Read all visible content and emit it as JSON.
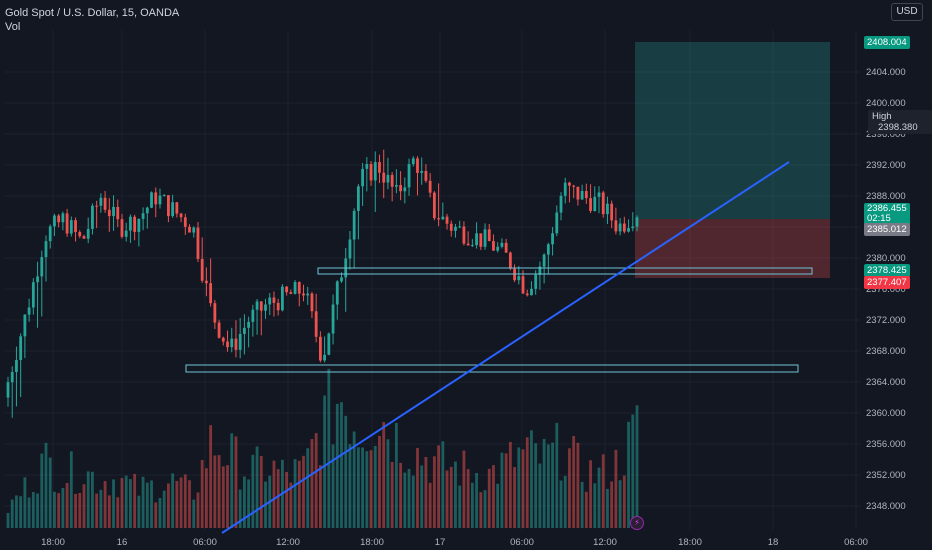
{
  "legend": {
    "symbol_line": "Gold Spot / U.S. Dollar, 15, OANDA",
    "volume_label": "Vol"
  },
  "currency_button": "USD",
  "y_axis": {
    "ticks": [
      "2348.000",
      "2352.000",
      "2356.000",
      "2360.000",
      "2364.000",
      "2368.000",
      "2372.000",
      "2376.000",
      "2380.000",
      "2384.000",
      "2388.000",
      "2392.000",
      "2396.000",
      "2400.000",
      "2404.000"
    ]
  },
  "x_axis": {
    "ticks": [
      "18:00",
      "16",
      "06:00",
      "12:00",
      "18:00",
      "17",
      "06:00",
      "12:00",
      "18:00",
      "18",
      "06:00"
    ]
  },
  "price_labels": {
    "target": "2408.004",
    "high_word": "High",
    "high_value": "2398.380",
    "last_price": "2386.455",
    "countdown": "02:15",
    "entry": "2385.012",
    "green_level": "2378.425",
    "stop": "2377.407"
  },
  "colors": {
    "background": "#131722",
    "up": "#26a69a",
    "down": "#ef5350",
    "trendline": "#2962ff",
    "zone_border": "#6ec6d6"
  },
  "chart_data": {
    "type": "candlestick",
    "timeframe": "15",
    "symbol": "Gold Spot / U.S. Dollar",
    "ylim": [
      2346.0,
      2411.0
    ],
    "candles_ohlc_sampled": [
      [
        2362,
        2366,
        2345,
        2364
      ],
      [
        2364,
        2375,
        2362,
        2373
      ],
      [
        2373,
        2385,
        2370,
        2383
      ],
      [
        2383,
        2387,
        2380,
        2385
      ],
      [
        2385,
        2386,
        2381,
        2382
      ],
      [
        2382,
        2390,
        2381,
        2388
      ],
      [
        2388,
        2389,
        2382,
        2384
      ],
      [
        2384,
        2386,
        2380,
        2385
      ],
      [
        2385,
        2390,
        2383,
        2388
      ],
      [
        2388,
        2389,
        2383,
        2386
      ],
      [
        2386,
        2387,
        2381,
        2384
      ],
      [
        2384,
        2385,
        2371,
        2373
      ],
      [
        2373,
        2374,
        2366,
        2368
      ],
      [
        2368,
        2374,
        2365,
        2372
      ],
      [
        2372,
        2376,
        2369,
        2374
      ],
      [
        2374,
        2377,
        2372,
        2375
      ],
      [
        2375,
        2378,
        2371,
        2376
      ],
      [
        2376,
        2377,
        2366,
        2367
      ],
      [
        2367,
        2380,
        2366,
        2378
      ],
      [
        2378,
        2392,
        2377,
        2390
      ],
      [
        2390,
        2397,
        2384,
        2392
      ],
      [
        2392,
        2395,
        2385,
        2388
      ],
      [
        2388,
        2394,
        2386,
        2393
      ],
      [
        2393,
        2395,
        2384,
        2386
      ],
      [
        2386,
        2387,
        2381,
        2384
      ],
      [
        2384,
        2386,
        2381,
        2383
      ],
      [
        2383,
        2385,
        2381,
        2382
      ],
      [
        2382,
        2383,
        2378,
        2380
      ],
      [
        2380,
        2381,
        2375,
        2376
      ],
      [
        2376,
        2381,
        2374,
        2380
      ],
      [
        2380,
        2391,
        2379,
        2389
      ],
      [
        2389,
        2393,
        2386,
        2388
      ],
      [
        2388,
        2390,
        2384,
        2387
      ],
      [
        2387,
        2388,
        2382,
        2384
      ],
      [
        2384,
        2387,
        2383,
        2386
      ]
    ],
    "volume_bars_sampled": [
      10,
      22,
      35,
      28,
      30,
      25,
      26,
      20,
      22,
      24,
      18,
      45,
      38,
      30,
      32,
      28,
      30,
      55,
      70,
      52,
      60,
      48,
      40,
      35,
      32,
      30,
      28,
      34,
      40,
      36,
      42,
      30,
      28,
      34,
      52
    ],
    "zones": [
      {
        "name": "upper-zone",
        "price_low": 2377.8,
        "price_high": 2378.8
      },
      {
        "name": "lower-zone",
        "price_low": 2365.3,
        "price_high": 2366.3
      }
    ],
    "trendline": {
      "from_price": 2346.5,
      "to_price": 2392.0
    },
    "position": {
      "target": 2408.004,
      "entry": 2385.012,
      "stop": 2377.407
    }
  }
}
